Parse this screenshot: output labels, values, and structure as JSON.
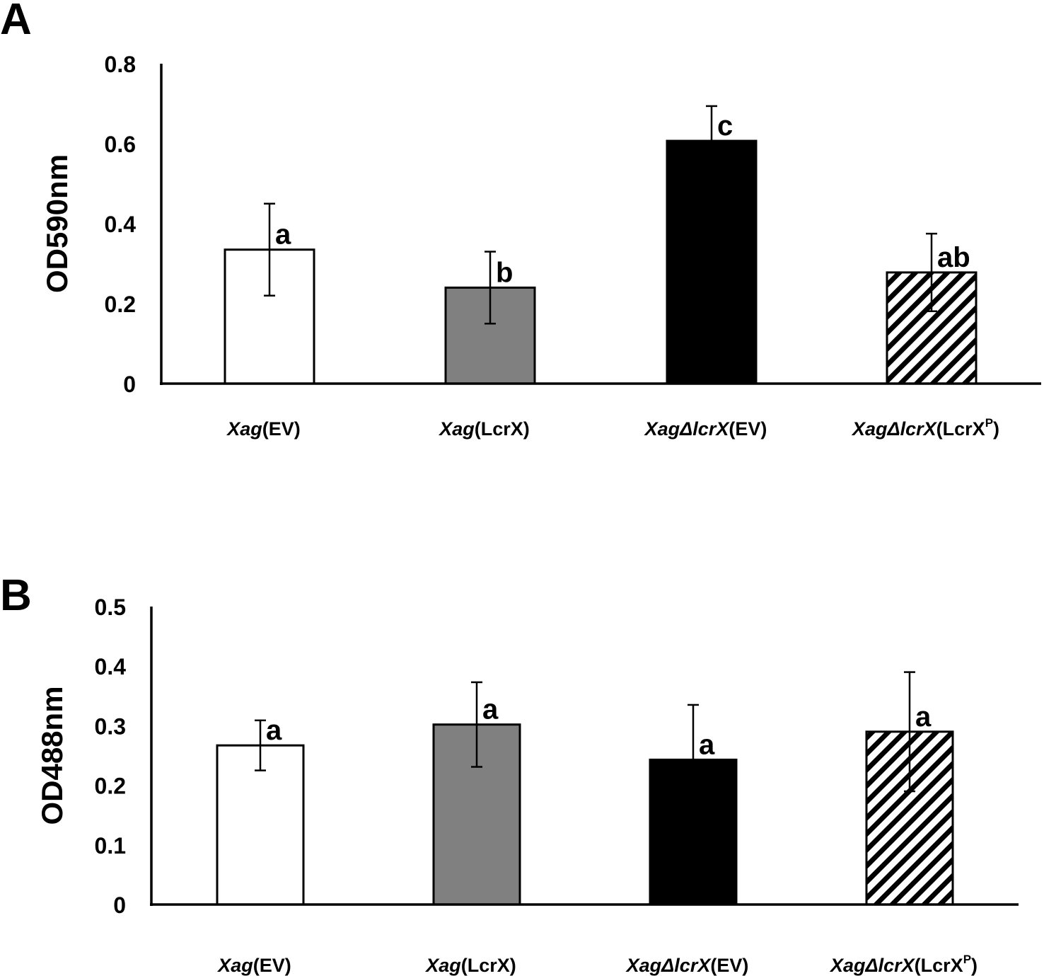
{
  "colors": {
    "axis": "#000000",
    "background": "#ffffff"
  },
  "category_labels": [
    {
      "italic": "Xag",
      "normal": "(EV)",
      "sup": ""
    },
    {
      "italic": "Xag",
      "normal": "(LcrX)",
      "sup": ""
    },
    {
      "italic": "XagΔlcrX",
      "normal": "(EV)",
      "sup": ""
    },
    {
      "italic": "XagΔlcrX",
      "normal": "(LcrX",
      "sup": "P",
      "close": ")"
    }
  ],
  "chart_data": [
    {
      "type": "bar",
      "panel": "A",
      "ylabel": "OD590nm",
      "ylim": [
        0,
        0.8
      ],
      "yticks": [
        "0",
        "0.2",
        "0.4",
        "0.6",
        "0.8"
      ],
      "categories": [
        "Xag(EV)",
        "Xag(LcrX)",
        "XagΔlcrX(EV)",
        "XagΔlcrX(LcrXP)"
      ],
      "values": [
        0.335,
        0.24,
        0.607,
        0.278
      ],
      "errors": [
        0.115,
        0.09,
        0.087,
        0.097
      ],
      "significance": [
        "a",
        "b",
        "c",
        "ab"
      ],
      "fills": [
        "white",
        "#808080",
        "#000000",
        "hatch"
      ]
    },
    {
      "type": "bar",
      "panel": "B",
      "ylabel": "OD488nm",
      "ylim": [
        0,
        0.5
      ],
      "yticks": [
        "0",
        "0.1",
        "0.2",
        "0.3",
        "0.4",
        "0.5"
      ],
      "categories": [
        "Xag(EV)",
        "Xag(LcrX)",
        "XagΔlcrX(EV)",
        "XagΔlcrX(LcrXP)"
      ],
      "values": [
        0.267,
        0.302,
        0.243,
        0.29
      ],
      "errors": [
        0.042,
        0.071,
        0.092,
        0.1
      ],
      "significance": [
        "a",
        "a",
        "a",
        "a"
      ],
      "fills": [
        "white",
        "#808080",
        "#000000",
        "hatch"
      ]
    }
  ]
}
